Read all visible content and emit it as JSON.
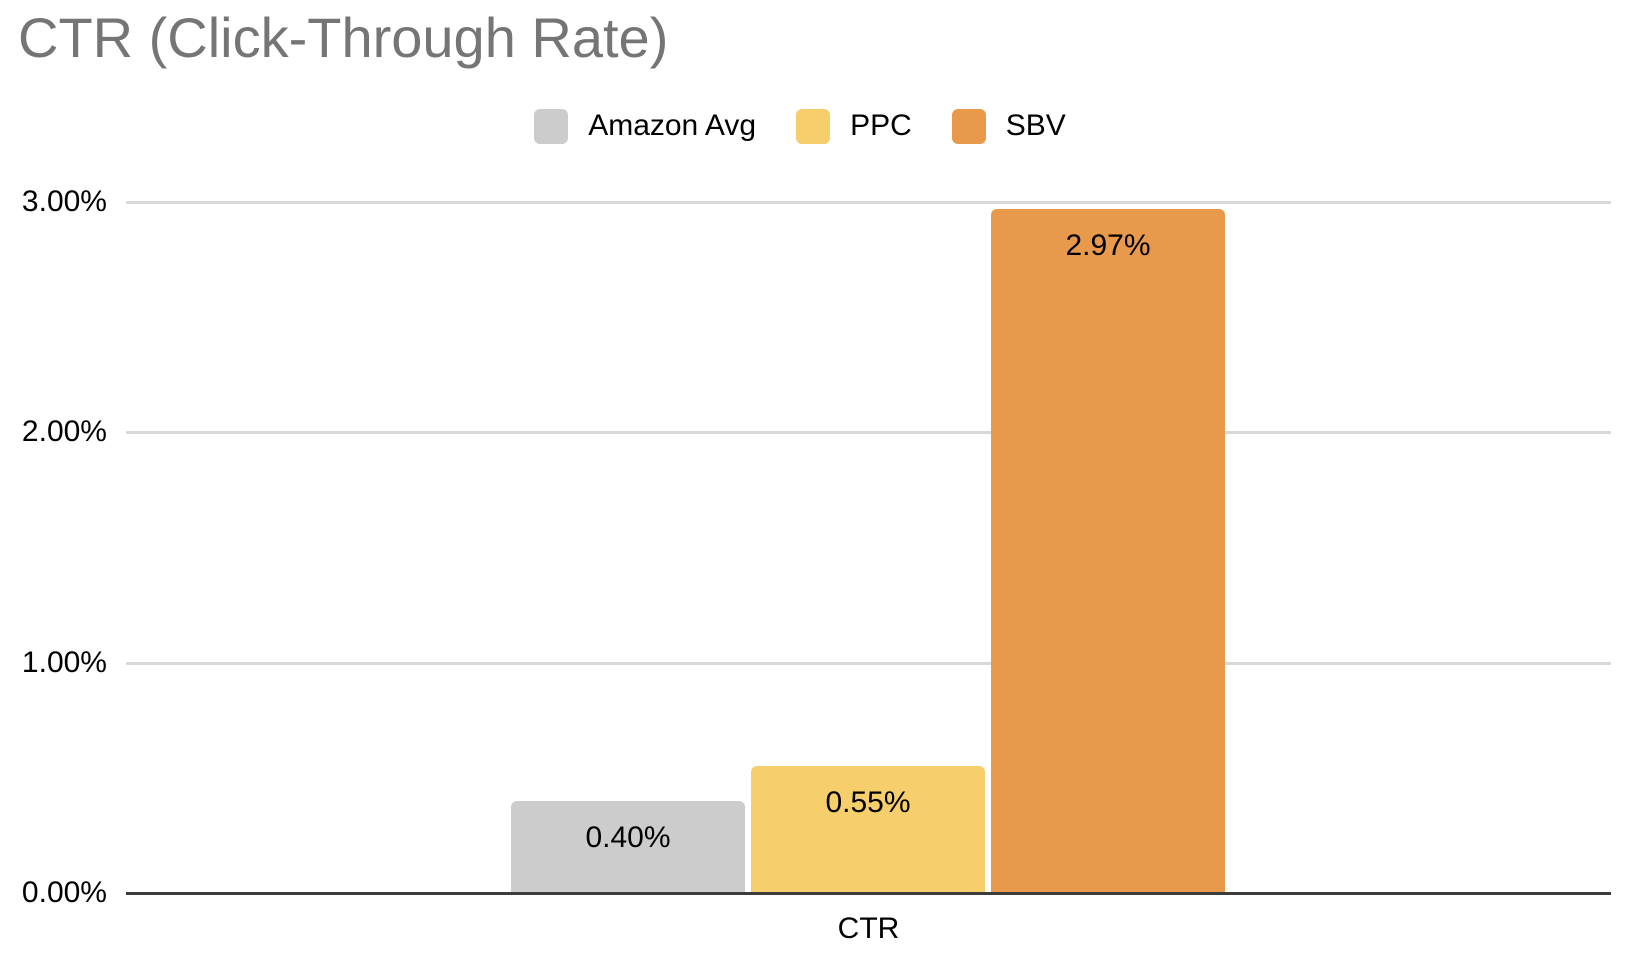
{
  "title": "CTR (Click-Through Rate)",
  "colors": {
    "title_text": "#757575",
    "gridline": "#d9d9d9",
    "axis_line": "#3c3c3c",
    "label_text": "#000000",
    "background": "#ffffff"
  },
  "chart_data": {
    "type": "bar",
    "title": "CTR (Click-Through Rate)",
    "categories": [
      "CTR"
    ],
    "series": [
      {
        "name": "Amazon Avg",
        "values": [
          0.4
        ],
        "data_label": "0.40%",
        "color": "#cccccc"
      },
      {
        "name": "PPC",
        "values": [
          0.55
        ],
        "data_label": "0.55%",
        "color": "#f6ce6b"
      },
      {
        "name": "SBV",
        "values": [
          2.97
        ],
        "data_label": "2.97%",
        "color": "#e8994b"
      }
    ],
    "xlabel": "CTR",
    "ylabel": "",
    "ylim": [
      0,
      3
    ],
    "yticks": [
      {
        "value": 0,
        "label": "0.00%"
      },
      {
        "value": 1,
        "label": "1.00%"
      },
      {
        "value": 2,
        "label": "2.00%"
      },
      {
        "value": 3,
        "label": "3.00%"
      }
    ],
    "grid": true,
    "legend_position": "top"
  }
}
